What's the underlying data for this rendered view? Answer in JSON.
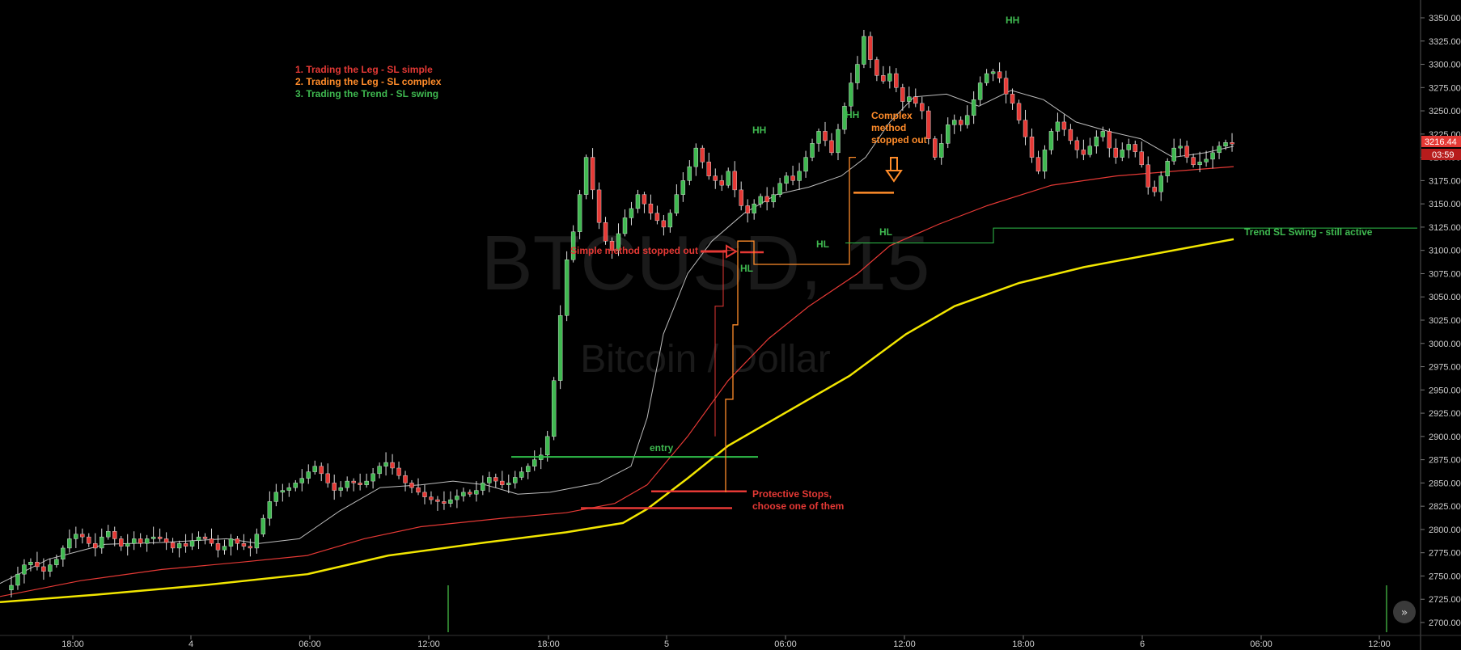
{
  "chart_data": {
    "type": "candlestick",
    "symbol": "BTCUSD, 15",
    "subtitle": "Bitcoin / Dollar",
    "ylim": [
      2690,
      3365
    ],
    "y_ticks": [
      2700,
      2725,
      2750,
      2775,
      2800,
      2825,
      2850,
      2875,
      2900,
      2925,
      2950,
      2975,
      3000,
      3025,
      3050,
      3075,
      3100,
      3125,
      3150,
      3175,
      3200,
      3225,
      3250,
      3275,
      3300,
      3325,
      3350
    ],
    "x_ticks": [
      "18:00",
      "4",
      "06:00",
      "12:00",
      "18:00",
      "5",
      "06:00",
      "12:00",
      "18:00",
      "6",
      "06:00",
      "12:00"
    ],
    "last_price": "3216.44",
    "countdown": "03:59",
    "legend": [
      {
        "text": "1. Trading the Leg - SL simple",
        "color": "#e53935"
      },
      {
        "text": "2. Trading the Leg - SL complex",
        "color": "#ff8c2a"
      },
      {
        "text": "3. Trading the Trend - SL swing",
        "color": "#3fb950"
      }
    ],
    "annotations": {
      "entry": "entry",
      "protective_line1": "Protective Stops,",
      "protective_line2": "choose one of them",
      "simple_stopped": "Simple method stopped out",
      "complex_line1": "Complex",
      "complex_line2": "method",
      "complex_line3": "stopped out",
      "trend_sl": "Trend SL Swing - still active",
      "swing_labels": [
        "HH",
        "HL",
        "HH",
        "HL",
        "HL",
        "HH"
      ]
    },
    "price_path": [
      2735,
      2740,
      2752,
      2762,
      2765,
      2760,
      2755,
      2762,
      2768,
      2780,
      2790,
      2795,
      2792,
      2785,
      2780,
      2792,
      2798,
      2790,
      2782,
      2785,
      2790,
      2785,
      2790,
      2792,
      2790,
      2786,
      2780,
      2785,
      2782,
      2788,
      2792,
      2790,
      2785,
      2778,
      2782,
      2790,
      2785,
      2782,
      2780,
      2795,
      2812,
      2830,
      2840,
      2842,
      2845,
      2850,
      2855,
      2862,
      2868,
      2860,
      2850,
      2842,
      2845,
      2852,
      2850,
      2848,
      2852,
      2860,
      2868,
      2872,
      2866,
      2858,
      2850,
      2845,
      2840,
      2835,
      2832,
      2830,
      2828,
      2832,
      2836,
      2840,
      2838,
      2842,
      2850,
      2856,
      2852,
      2848,
      2850,
      2856,
      2862,
      2868,
      2875,
      2880,
      2900,
      2960,
      3030,
      3090,
      3120,
      3160,
      3200,
      3165,
      3130,
      3110,
      3100,
      3118,
      3135,
      3145,
      3160,
      3150,
      3140,
      3132,
      3125,
      3140,
      3160,
      3175,
      3190,
      3210,
      3195,
      3180,
      3175,
      3170,
      3185,
      3165,
      3148,
      3140,
      3150,
      3158,
      3152,
      3160,
      3172,
      3180,
      3175,
      3185,
      3200,
      3215,
      3228,
      3218,
      3205,
      3230,
      3255,
      3280,
      3300,
      3330,
      3305,
      3288,
      3282,
      3290,
      3275,
      3260,
      3265,
      3258,
      3250,
      3220,
      3200,
      3215,
      3235,
      3240,
      3235,
      3245,
      3262,
      3280,
      3290,
      3292,
      3285,
      3268,
      3258,
      3240,
      3222,
      3200,
      3185,
      3208,
      3228,
      3238,
      3230,
      3218,
      3208,
      3203,
      3212,
      3222,
      3228,
      3210,
      3200,
      3208,
      3214,
      3206,
      3192,
      3168,
      3163,
      3180,
      3196,
      3210,
      3212,
      3200,
      3192,
      3195,
      3198,
      3205,
      3212,
      3216,
      3215
    ],
    "sma20": [
      [
        0,
        2742
      ],
      [
        60,
        2768
      ],
      [
        130,
        2784
      ],
      [
        200,
        2786
      ],
      [
        280,
        2790
      ],
      [
        320,
        2785
      ],
      [
        370,
        2790
      ],
      [
        420,
        2820
      ],
      [
        470,
        2845
      ],
      [
        520,
        2848
      ],
      [
        560,
        2852
      ],
      [
        600,
        2848
      ],
      [
        640,
        2838
      ],
      [
        680,
        2840
      ],
      [
        740,
        2850
      ],
      [
        780,
        2868
      ],
      [
        800,
        2920
      ],
      [
        820,
        3010
      ],
      [
        850,
        3075
      ],
      [
        880,
        3110
      ],
      [
        920,
        3140
      ],
      [
        960,
        3160
      ],
      [
        1000,
        3168
      ],
      [
        1040,
        3180
      ],
      [
        1070,
        3200
      ],
      [
        1100,
        3238
      ],
      [
        1130,
        3265
      ],
      [
        1170,
        3268
      ],
      [
        1210,
        3255
      ],
      [
        1250,
        3272
      ],
      [
        1290,
        3262
      ],
      [
        1330,
        3238
      ],
      [
        1370,
        3228
      ],
      [
        1410,
        3220
      ],
      [
        1450,
        3200
      ],
      [
        1490,
        3205
      ],
      [
        1525,
        3212
      ]
    ],
    "ma_red": [
      [
        0,
        2728
      ],
      [
        100,
        2745
      ],
      [
        200,
        2757
      ],
      [
        300,
        2765
      ],
      [
        380,
        2772
      ],
      [
        450,
        2790
      ],
      [
        520,
        2803
      ],
      [
        620,
        2812
      ],
      [
        700,
        2818
      ],
      [
        760,
        2828
      ],
      [
        800,
        2848
      ],
      [
        850,
        2900
      ],
      [
        900,
        2960
      ],
      [
        950,
        3005
      ],
      [
        1000,
        3040
      ],
      [
        1060,
        3075
      ],
      [
        1100,
        3105
      ],
      [
        1160,
        3128
      ],
      [
        1220,
        3148
      ],
      [
        1300,
        3170
      ],
      [
        1380,
        3180
      ],
      [
        1450,
        3185
      ],
      [
        1525,
        3190
      ]
    ],
    "ma_yellow": [
      [
        0,
        2722
      ],
      [
        120,
        2730
      ],
      [
        250,
        2740
      ],
      [
        380,
        2752
      ],
      [
        480,
        2772
      ],
      [
        600,
        2786
      ],
      [
        700,
        2797
      ],
      [
        770,
        2807
      ],
      [
        800,
        2822
      ],
      [
        850,
        2855
      ],
      [
        900,
        2890
      ],
      [
        960,
        2920
      ],
      [
        1050,
        2965
      ],
      [
        1120,
        3010
      ],
      [
        1180,
        3040
      ],
      [
        1260,
        3065
      ],
      [
        1340,
        3082
      ],
      [
        1420,
        3095
      ],
      [
        1525,
        3112
      ]
    ],
    "stop_levels": {
      "entry": 2878,
      "protective_1": 2841,
      "protective_2": 2823,
      "simple_sl": 3098,
      "complex_sl": 3162,
      "trend_sl_low": 3108,
      "trend_sl_high": 3124
    }
  },
  "colors": {
    "bull": "#3fb950",
    "bear": "#e53935",
    "ma_red": "#e53935",
    "ma_yellow": "#f2e600",
    "sma": "#bdbdbd",
    "orange": "#ff8c2a",
    "green_line": "#2fbf4a"
  }
}
